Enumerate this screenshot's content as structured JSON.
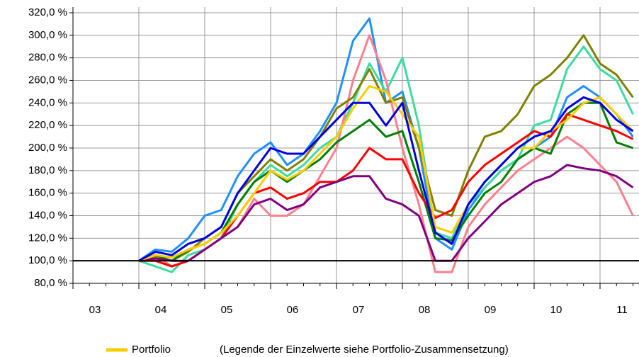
{
  "chart_data": {
    "type": "line",
    "categories": [
      "03",
      null,
      null,
      null,
      "04",
      null,
      null,
      null,
      "05",
      null,
      null,
      null,
      "06",
      null,
      null,
      null,
      "07",
      null,
      null,
      null,
      "08",
      null,
      null,
      null,
      "09",
      null,
      null,
      null,
      "10",
      null,
      null,
      null,
      "11",
      null,
      null
    ],
    "series": [
      {
        "color": "#1e90ff",
        "values": [
          null,
          null,
          null,
          null,
          100,
          110,
          108,
          120,
          140,
          145,
          175,
          195,
          205,
          185,
          195,
          215,
          240,
          295,
          315,
          240,
          250,
          200,
          120,
          110,
          145,
          165,
          180,
          190,
          200,
          210,
          245,
          255,
          245,
          230,
          210
        ]
      },
      {
        "color": "#3cdca0",
        "values": [
          null,
          null,
          null,
          null,
          100,
          95,
          90,
          105,
          110,
          120,
          150,
          170,
          185,
          175,
          185,
          200,
          210,
          240,
          275,
          250,
          280,
          220,
          125,
          120,
          150,
          165,
          180,
          190,
          220,
          225,
          270,
          290,
          270,
          260,
          230
        ]
      },
      {
        "color": "#ff7f8f",
        "values": [
          null,
          null,
          null,
          null,
          100,
          105,
          95,
          100,
          110,
          120,
          130,
          155,
          140,
          140,
          150,
          175,
          200,
          260,
          300,
          260,
          200,
          150,
          90,
          90,
          130,
          150,
          165,
          180,
          190,
          200,
          210,
          200,
          185,
          170,
          140
        ]
      },
      {
        "color": "#808000",
        "values": [
          null,
          null,
          null,
          null,
          100,
          104,
          100,
          108,
          120,
          130,
          160,
          175,
          190,
          180,
          190,
          210,
          235,
          245,
          270,
          240,
          245,
          200,
          145,
          140,
          180,
          210,
          215,
          230,
          255,
          265,
          280,
          300,
          275,
          265,
          245
        ]
      },
      {
        "color": "#008000",
        "values": [
          null,
          null,
          null,
          null,
          100,
          105,
          100,
          110,
          115,
          125,
          150,
          170,
          180,
          170,
          180,
          190,
          205,
          215,
          225,
          210,
          215,
          170,
          120,
          118,
          140,
          160,
          170,
          190,
          200,
          195,
          230,
          240,
          240,
          205,
          200
        ]
      },
      {
        "color": "#ff0000",
        "values": [
          null,
          null,
          null,
          null,
          100,
          100,
          95,
          100,
          110,
          120,
          140,
          160,
          165,
          155,
          160,
          170,
          170,
          180,
          200,
          190,
          190,
          160,
          138,
          145,
          170,
          185,
          195,
          205,
          215,
          210,
          230,
          225,
          220,
          215,
          208
        ]
      },
      {
        "color": "#800080",
        "values": [
          null,
          null,
          null,
          null,
          100,
          102,
          100,
          100,
          110,
          120,
          130,
          150,
          155,
          145,
          150,
          165,
          170,
          175,
          175,
          155,
          150,
          140,
          100,
          100,
          120,
          135,
          150,
          160,
          170,
          175,
          185,
          182,
          180,
          175,
          165
        ]
      },
      {
        "name": "Portfolio",
        "color": "#ffcc00",
        "values": [
          null,
          null,
          null,
          null,
          100,
          105,
          103,
          110,
          115,
          125,
          140,
          160,
          180,
          172,
          180,
          195,
          210,
          235,
          255,
          250,
          230,
          210,
          130,
          125,
          150,
          170,
          185,
          200,
          200,
          215,
          225,
          240,
          245,
          230,
          215
        ]
      },
      {
        "color": "#0000e0",
        "values": [
          null,
          null,
          null,
          null,
          100,
          108,
          105,
          115,
          120,
          130,
          160,
          180,
          200,
          195,
          195,
          210,
          225,
          240,
          240,
          220,
          240,
          180,
          125,
          115,
          150,
          170,
          185,
          200,
          210,
          215,
          235,
          245,
          240,
          225,
          215
        ]
      }
    ],
    "ylim": [
      80,
      320
    ],
    "yticks": [
      {
        "value": 80,
        "label": "80,0 %"
      },
      {
        "value": 100,
        "label": "100,0 %"
      },
      {
        "value": 120,
        "label": "120,0 %"
      },
      {
        "value": 140,
        "label": "140,0 %"
      },
      {
        "value": 160,
        "label": "160,0 %"
      },
      {
        "value": 180,
        "label": "180,0 %"
      },
      {
        "value": 200,
        "label": "200,0 %"
      },
      {
        "value": 220,
        "label": "220,0 %"
      },
      {
        "value": 240,
        "label": "240,0 %"
      },
      {
        "value": 260,
        "label": "260,0 %"
      },
      {
        "value": 280,
        "label": "280,0 %"
      },
      {
        "value": 300,
        "label": "300,0 %"
      },
      {
        "value": 320,
        "label": "320,0 %"
      }
    ],
    "grid": true,
    "note": "(Legende der Einzelwerte siehe Portfolio-Zusammensetzung)"
  }
}
